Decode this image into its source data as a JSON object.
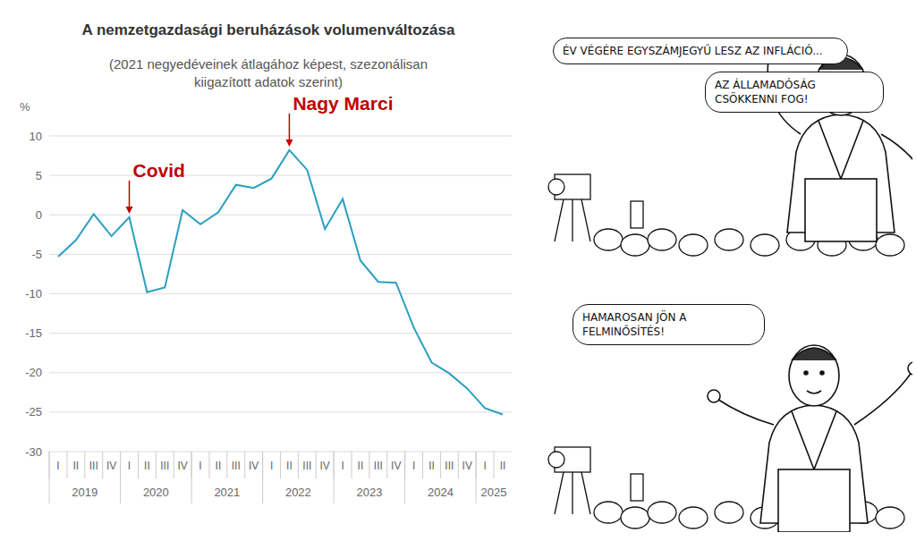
{
  "chart_data": {
    "type": "line",
    "title": "A nemzetgazdasági beruházások volumenváltozása",
    "subtitle": "(2021 negyedéveinek átlagához képest, szezonálisan kiigazított adatok szerint)",
    "y_label": "%",
    "categories": [
      "I",
      "II",
      "III",
      "IV",
      "I",
      "II",
      "III",
      "IV",
      "I",
      "II",
      "III",
      "IV",
      "I",
      "II",
      "III",
      "IV",
      "I",
      "II",
      "III",
      "IV",
      "I",
      "II",
      "III",
      "IV",
      "I",
      "II"
    ],
    "years": [
      "2019",
      "2019",
      "2019",
      "2019",
      "2020",
      "2020",
      "2020",
      "2020",
      "2021",
      "2021",
      "2021",
      "2021",
      "2022",
      "2022",
      "2022",
      "2022",
      "2023",
      "2023",
      "2023",
      "2023",
      "2024",
      "2024",
      "2024",
      "2024",
      "2025",
      "2025"
    ],
    "values": [
      -5.3,
      -3.2,
      0.1,
      -2.7,
      -0.3,
      -9.8,
      -9.2,
      0.6,
      -1.2,
      0.3,
      3.8,
      3.4,
      4.6,
      8.2,
      5.7,
      -1.8,
      2.0,
      -5.8,
      -8.5,
      -8.6,
      -14.3,
      -18.7,
      -20.1,
      -22.0,
      -24.5,
      -25.3
    ],
    "color": "#2a9fc0",
    "ylim": [
      -30,
      10
    ],
    "yticks": [
      -30,
      -25,
      -20,
      -15,
      -10,
      -5,
      0,
      5,
      10
    ],
    "grid": true,
    "annotations": [
      {
        "text": "Covid",
        "year": "2020",
        "quarter": "I",
        "color": "#c00000"
      },
      {
        "text": "Nagy Marci",
        "year": "2022",
        "quarter": "II",
        "color": "#c00000"
      }
    ]
  },
  "cartoons": [
    {
      "bubbles": [
        "ÉV VÉGÉRE EGYSZÁMJEGYŰ LESZ AZ INFLÁCIÓ...",
        "AZ ÁLLAMADÓSÁG CSÖKKENNI FOG!"
      ]
    },
    {
      "bubbles": [
        "HAMAROSAN JÖN A FELMINŐSÍTÉS!"
      ]
    }
  ]
}
